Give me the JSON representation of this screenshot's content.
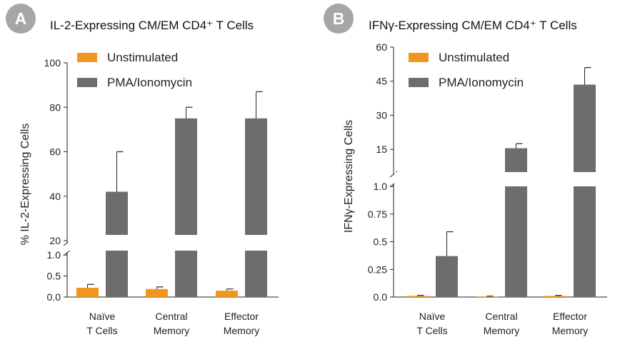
{
  "colors": {
    "unstim": "#f0961e",
    "pma": "#6d6d6d",
    "badge": "#a6a6a6",
    "axis": "#222222"
  },
  "chart_data": [
    {
      "panel_letter": "A",
      "type": "bar",
      "title": "IL-2-Expressing CM/EM CD4⁺ T Cells",
      "ylabel": "% IL-2-Expressing Cells",
      "categories": [
        [
          "Naïve",
          "T Cells"
        ],
        [
          "Central",
          "Memory"
        ],
        [
          "Effector",
          "Memory"
        ]
      ],
      "axis_break": true,
      "lower_ylim": [
        0,
        1.0
      ],
      "lower_ticks": [
        "0.0",
        "0.5",
        "1.0"
      ],
      "upper_ylim": [
        20,
        100
      ],
      "upper_ticks": [
        "20",
        "40",
        "60",
        "80",
        "100"
      ],
      "series": [
        {
          "name": "Unstimulated",
          "color": "#f0961e",
          "values": [
            0.22,
            0.19,
            0.15
          ],
          "errors": [
            0.08,
            0.05,
            0.04
          ]
        },
        {
          "name": "PMA/Ionomycin",
          "color": "#6d6d6d",
          "values": [
            42,
            75,
            75
          ],
          "errors": [
            18,
            5,
            12
          ]
        }
      ],
      "legend_position": "top-left"
    },
    {
      "panel_letter": "B",
      "type": "bar",
      "title": "IFNγ-Expressing CM/EM CD4⁺ T Cells",
      "ylabel": "IFNγ-Expressing Cells",
      "categories": [
        [
          "Naïve",
          "T Cells"
        ],
        [
          "Central",
          "Memory"
        ],
        [
          "Effector",
          "Memory"
        ]
      ],
      "axis_break": true,
      "lower_ylim": [
        0,
        1.0
      ],
      "lower_ticks": [
        "0.0",
        "0.25",
        "0.5",
        "0.75",
        "1.0"
      ],
      "upper_ylim": [
        5,
        60
      ],
      "upper_ticks": [
        "15",
        "30",
        "45",
        "60"
      ],
      "series": [
        {
          "name": "Unstimulated",
          "color": "#f0961e",
          "values": [
            0.01,
            0.005,
            0.01
          ],
          "errors": [
            0.005,
            0.003,
            0.005
          ]
        },
        {
          "name": "PMA/Ionomycin",
          "color": "#6d6d6d",
          "values": [
            0.37,
            15.5,
            43.5
          ],
          "errors": [
            0.22,
            2,
            7.5
          ]
        }
      ],
      "legend_position": "top-left"
    }
  ]
}
